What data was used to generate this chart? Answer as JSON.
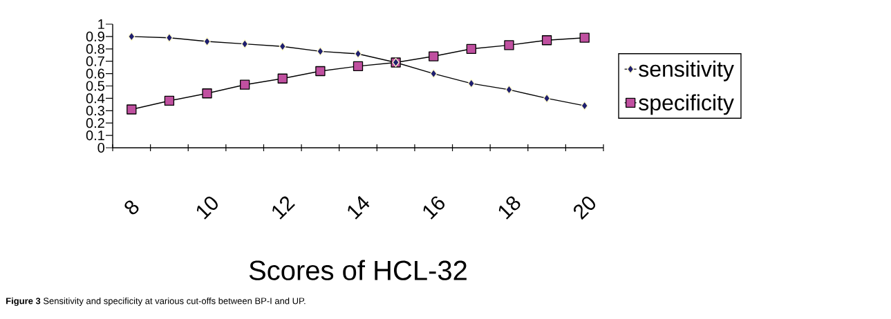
{
  "chart_data": {
    "type": "line",
    "xlabel": "Scores of HCL-32",
    "categories": [
      "8",
      null,
      "10",
      null,
      "12",
      null,
      "14",
      null,
      "16",
      null,
      "18",
      null,
      "20"
    ],
    "series": [
      {
        "name": "sensitivity",
        "color": "#1f1f6e",
        "marker": "diamond",
        "values": [
          0.9,
          0.89,
          0.86,
          0.84,
          0.82,
          0.78,
          0.76,
          0.69,
          0.6,
          0.52,
          0.47,
          0.4,
          0.34
        ]
      },
      {
        "name": "specificity",
        "color": "#c050a0",
        "marker": "square",
        "values": [
          0.31,
          0.38,
          0.44,
          0.51,
          0.56,
          0.62,
          0.66,
          0.69,
          0.74,
          0.8,
          0.83,
          0.87,
          0.89
        ]
      }
    ],
    "ylim": [
      0,
      1
    ],
    "yticks": [
      0,
      0.1,
      0.2,
      0.3,
      0.4,
      0.5,
      0.6,
      0.7,
      0.8,
      0.9,
      1
    ],
    "grid": false,
    "legend": "right",
    "line_style": "solid",
    "annotations": [
      "**Figure 3** Sensitivity and specificity at various cut-offs between BP-I and UP."
    ]
  }
}
